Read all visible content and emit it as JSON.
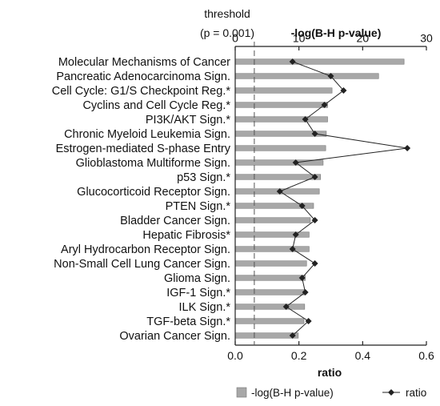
{
  "chart_data": {
    "type": "bar",
    "categories": [
      "Molecular Mechanisms of Cancer",
      "Pancreatic Adenocarcinoma Sign.",
      "Cell Cycle: G1/S Checkpoint Reg.*",
      "Cyclins and Cell Cycle Reg.*",
      "PI3K/AKT Sign.*",
      "Chronic Myeloid Leukemia Sign.",
      "Estrogen-mediated S-phase Entry",
      "Glioblastoma Multiforme Sign.",
      "p53 Sign.*",
      "Glucocorticoid Receptor Sign.",
      "PTEN Sign.*",
      "Bladder Cancer Sign.",
      "Hepatic Fibrosis*",
      "Aryl Hydrocarbon Receptor Sign.",
      "Non-Small Cell Lung Cancer Sign.",
      "Glioma Sign.",
      "IGF-1 Sign.*",
      "ILK Sign.*",
      "TGF-beta Sign.*",
      "Ovarian Cancer Sign."
    ],
    "series": [
      {
        "name": "-log(B-H p-value)",
        "axis": "top",
        "values": [
          26.5,
          22.5,
          15.2,
          14.5,
          14.5,
          14.3,
          14.2,
          13.8,
          13.4,
          13.2,
          12.3,
          11.8,
          11.6,
          11.6,
          11.2,
          11.0,
          11.0,
          10.9,
          10.8,
          9.9
        ]
      },
      {
        "name": "ratio",
        "axis": "bottom",
        "values": [
          0.18,
          0.3,
          0.34,
          0.28,
          0.22,
          0.25,
          0.54,
          0.19,
          0.25,
          0.14,
          0.21,
          0.25,
          0.19,
          0.18,
          0.25,
          0.21,
          0.22,
          0.16,
          0.23,
          0.18
        ]
      }
    ],
    "top_axis": {
      "title": "-log(B-H p-value)",
      "range": [
        0,
        30
      ],
      "ticks": [
        0,
        10,
        20,
        30
      ]
    },
    "bottom_axis": {
      "title": "ratio",
      "range": [
        0,
        0.6
      ],
      "ticks": [
        "0.0",
        "0.2",
        "0.4",
        "0.6"
      ]
    },
    "threshold": {
      "label_line1": "threshold",
      "label_line2": "(p = 0.001)",
      "value": 3
    },
    "legend": {
      "placement": "bottom",
      "items": [
        {
          "label": "-log(B-H p-value)",
          "symbol": "bar"
        },
        {
          "label": "ratio",
          "symbol": "diamond-line"
        }
      ]
    },
    "colors": {
      "bar_fill": "#a8a8a8",
      "bar_stroke": "#777777",
      "line": "#222222",
      "marker": "#222222",
      "threshold_line": "#555555"
    }
  }
}
